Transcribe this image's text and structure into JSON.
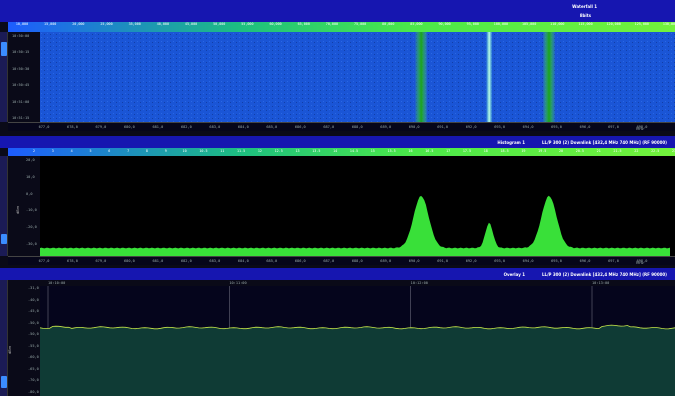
{
  "waterfall": {
    "title": "Waterfall 1",
    "title_sub": "8bits",
    "freq_labels": [
      "10,000",
      "15,000",
      "20,000",
      "25,000",
      "35,000",
      "40,000",
      "45,000",
      "50,000",
      "55,000",
      "60,000",
      "65,000",
      "70,000",
      "75,000",
      "80,000",
      "85,000",
      "90,000",
      "95,000",
      "100,000",
      "105,000",
      "110,000",
      "115,000",
      "120,000",
      "125,000",
      "130,000"
    ],
    "time_labels": [
      "10:50:00",
      "10:50:15",
      "10:50:30",
      "10:50:45",
      "10:51:00",
      "10:51:15"
    ],
    "x_labels": [
      "677,0",
      "678,0",
      "679,0",
      "680,0",
      "681,0",
      "682,0",
      "683,0",
      "684,0",
      "685,0",
      "686,0",
      "687,0",
      "688,0",
      "689,0",
      "690,0",
      "691,0",
      "692,0",
      "693,0",
      "694,0",
      "695,0",
      "696,0",
      "697,0",
      "698,0"
    ],
    "x_unit": "MHz",
    "signal_positions": [
      0.605,
      0.713,
      0.808
    ],
    "colors": {
      "bg": "#1a55d6",
      "signal": "#4fe24f",
      "signal_core": "#1aa41a"
    }
  },
  "histogram": {
    "title": "Histogram 1",
    "title_detail": "LL/P 300 (2) Downlink [432,4 MHz 740 MHz]    (RF 90000)",
    "level_labels": [
      "2",
      "3",
      "4",
      "5",
      "6",
      "7",
      "8",
      "9",
      "10",
      "10.5",
      "11",
      "11.5",
      "12",
      "12.5",
      "13",
      "13.5",
      "14",
      "14.5",
      "15",
      "15.5",
      "16",
      "16.5",
      "17",
      "17.5",
      "18",
      "18.5",
      "19",
      "19.5",
      "20",
      "20.5",
      "21",
      "21.5",
      "22",
      "22.5",
      "23"
    ],
    "y_labels": [
      "20,0",
      "10,0",
      "0,0",
      "-10,0",
      "-20,0",
      "-30,0"
    ],
    "y_unit": "dBm",
    "x_labels": [
      "677,0",
      "678,0",
      "679,0",
      "680,0",
      "681,0",
      "682,0",
      "683,0",
      "684,0",
      "685,0",
      "686,0",
      "687,0",
      "688,0",
      "689,0",
      "690,0",
      "691,0",
      "692,0",
      "693,0",
      "694,0",
      "695,0",
      "696,0",
      "697,0",
      "698,0"
    ],
    "x_unit": "MHz",
    "peaks": [
      {
        "freq_frac": 0.605,
        "height_frac": 0.52,
        "width_frac": 0.012
      },
      {
        "freq_frac": 0.713,
        "height_frac": 0.25,
        "width_frac": 0.006
      },
      {
        "freq_frac": 0.808,
        "height_frac": 0.52,
        "width_frac": 0.012
      }
    ],
    "floor_frac": 0.08,
    "colors": {
      "fill": "#39e039",
      "bg": "#000000"
    }
  },
  "overlay": {
    "title": "Overlay 1",
    "title_detail": "LL/P 300 (2) Downlink [432,4 MHz 740 MHz]    (RF 90000)",
    "time_labels": [
      "10:10:00",
      "10:11:00",
      "10:12:00",
      "10:13:00"
    ],
    "y_labels": [
      "-31,0",
      "-40,0",
      "-45,0",
      "-50,0",
      "-50,0",
      "-55,0",
      "-60,0",
      "-65,0",
      "-70,0",
      "-80,0"
    ],
    "y_unit": "dBm",
    "trace_level_frac": 0.62,
    "colors": {
      "fill": "#0f3b35",
      "line": "#c8e84a",
      "bg": "#05051c"
    }
  }
}
